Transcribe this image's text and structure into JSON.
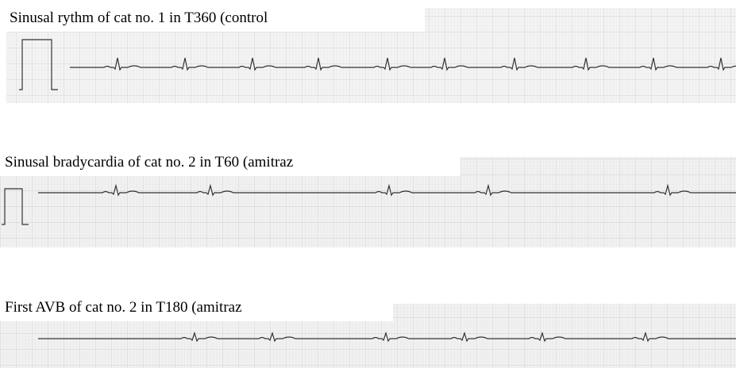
{
  "captions": [
    "Sinusal rythm of cat no. 1 in T360 (control",
    "Sinusal bradycardia of cat no. 2 in T60 (amitraz",
    "First AVB of cat no. 2 in T180 (amitraz"
  ]
}
